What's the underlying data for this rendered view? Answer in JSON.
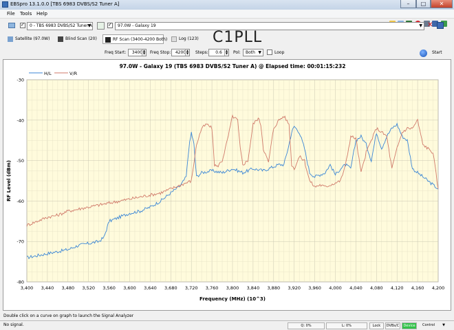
{
  "window": {
    "title": "EBSpro 13.1.0.0 [TBS 6983 DVBS/S2 Tuner A]"
  },
  "menu": {
    "file": "File",
    "tools": "Tools",
    "help": "Help"
  },
  "tuner": {
    "selected": "0 - TBS 6983 DVBS/S2 Tuner A"
  },
  "satellite_combo": {
    "selected": "97.0W - Galaxy 19"
  },
  "tabs": [
    {
      "label": "Satellite (97.0W)"
    },
    {
      "label": "Blind Scan (20)"
    },
    {
      "label": "RF Scan (3400-4200 Both)"
    },
    {
      "label": "Log (123)"
    }
  ],
  "watermark": "C1PLL",
  "scan_controls": {
    "freq_start_label": "Freq Start:",
    "freq_start": "3400",
    "freq_stop_label": "Freq Stop:",
    "freq_stop": "4200",
    "steps_label": "Steps:",
    "steps": "0.6",
    "pol_label": "Pol:",
    "pol": "Both",
    "loop_label": "Loop",
    "start_label": "Start"
  },
  "status": {
    "hint": "Double click on a curve on graph to launch the Signal Analyzer",
    "signal": "No signal.",
    "q": "Q: 0%",
    "l": "L: 0%",
    "lock": "Lock",
    "dvb": "DVBs/C",
    "device": "Device",
    "control": "Control"
  },
  "colors": {
    "hl": "#3a86d6",
    "vr": "#d07a6a",
    "plot_bg": "#fffbdc"
  },
  "chart_data": {
    "type": "line",
    "title": "97.0W - Galaxy 19 (TBS 6983 DVBS/S2 Tuner A) @ Elapsed time: 00:01:15:232",
    "xlabel": "Frequency (MHz) (10^3)",
    "ylabel": "RF Level (dBm)",
    "xlim": [
      3400,
      4200
    ],
    "ylim": [
      -80,
      -30
    ],
    "xticks": [
      "3,400",
      "3,440",
      "3,480",
      "3,520",
      "3,560",
      "3,600",
      "3,640",
      "3,680",
      "3,720",
      "3,760",
      "3,800",
      "3,840",
      "3,880",
      "3,920",
      "3,960",
      "4,000",
      "4,040",
      "4,080",
      "4,120",
      "4,160",
      "4,200"
    ],
    "xtick_values": [
      3400,
      3440,
      3480,
      3520,
      3560,
      3600,
      3640,
      3680,
      3720,
      3760,
      3800,
      3840,
      3880,
      3920,
      3960,
      4000,
      4040,
      4080,
      4120,
      4160,
      4200
    ],
    "yticks": [
      "-30",
      "-40",
      "-50",
      "-60",
      "-70",
      "-80"
    ],
    "ytick_values": [
      -30,
      -40,
      -50,
      -60,
      -70,
      -80
    ],
    "grid": true,
    "legend": "top-left",
    "series": [
      {
        "name": "H/L",
        "x": [
          3400,
          3420,
          3440,
          3460,
          3480,
          3500,
          3520,
          3540,
          3550,
          3555,
          3560,
          3580,
          3600,
          3620,
          3640,
          3660,
          3680,
          3700,
          3710,
          3715,
          3720,
          3725,
          3730,
          3740,
          3760,
          3780,
          3800,
          3820,
          3840,
          3860,
          3880,
          3890,
          3900,
          3910,
          3915,
          3920,
          3930,
          3940,
          3950,
          3960,
          3970,
          3980,
          3990,
          4000,
          4010,
          4020,
          4030,
          4040,
          4050,
          4060,
          4070,
          4080,
          4090,
          4100,
          4110,
          4120,
          4130,
          4140,
          4150,
          4160,
          4170,
          4180,
          4190,
          4200
        ],
        "values": [
          -74,
          -73.5,
          -73,
          -72.5,
          -72,
          -71,
          -70.5,
          -70,
          -69,
          -67,
          -65,
          -64,
          -63,
          -62.5,
          -61.5,
          -60,
          -58,
          -56,
          -54,
          -47,
          -43,
          -46,
          -54,
          -53,
          -52.5,
          -53,
          -52,
          -53,
          -52,
          -52.5,
          -51.5,
          -51,
          -51,
          -46,
          -43,
          -41.5,
          -43,
          -47,
          -53,
          -54,
          -53.5,
          -53,
          -51,
          -53.5,
          -52,
          -51,
          -52,
          -45,
          -44,
          -46,
          -50,
          -43,
          -47,
          -44,
          -42,
          -41,
          -44,
          -45,
          -52,
          -53,
          -54,
          -55,
          -56,
          -57
        ]
      },
      {
        "name": "V/R",
        "x": [
          3400,
          3420,
          3440,
          3460,
          3480,
          3500,
          3520,
          3540,
          3560,
          3580,
          3600,
          3620,
          3640,
          3660,
          3680,
          3700,
          3720,
          3730,
          3740,
          3750,
          3760,
          3765,
          3770,
          3780,
          3790,
          3800,
          3810,
          3815,
          3820,
          3830,
          3840,
          3850,
          3855,
          3860,
          3870,
          3880,
          3890,
          3900,
          3910,
          3915,
          3920,
          3930,
          3940,
          3950,
          3960,
          3970,
          3980,
          3990,
          4000,
          4010,
          4020,
          4030,
          4040,
          4050,
          4060,
          4070,
          4080,
          4090,
          4100,
          4110,
          4120,
          4130,
          4140,
          4150,
          4160,
          4170,
          4180,
          4190,
          4200
        ],
        "values": [
          -66,
          -65,
          -64,
          -63.5,
          -62.5,
          -62,
          -61.5,
          -61,
          -60.5,
          -60,
          -59.5,
          -59,
          -58.5,
          -58,
          -57,
          -56,
          -55,
          -46,
          -42,
          -41,
          -42,
          -51,
          -51.5,
          -50,
          -45,
          -39,
          -40,
          -47,
          -51,
          -50,
          -41,
          -39.5,
          -41,
          -47,
          -50.5,
          -42,
          -40,
          -39,
          -41,
          -51,
          -52,
          -49,
          -50,
          -55,
          -56.5,
          -56,
          -56.5,
          -56,
          -55.5,
          -55,
          -51,
          -44,
          -44.5,
          -53,
          -48,
          -45,
          -42,
          -43,
          -44,
          -52,
          -47,
          -43,
          -42,
          -42,
          -40,
          -46,
          -47,
          -48,
          -57
        ]
      }
    ]
  }
}
